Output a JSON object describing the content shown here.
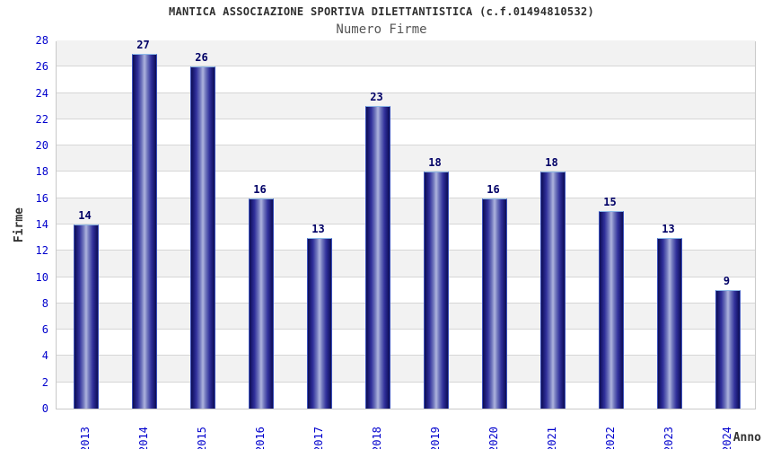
{
  "header": {
    "title": "MANTICA ASSOCIAZIONE SPORTIVA DILETTANTISTICA (c.f.01494810532)",
    "subtitle": "Numero Firme"
  },
  "chart_data": {
    "type": "bar",
    "title": "MANTICA ASSOCIAZIONE SPORTIVA DILETTANTISTICA (c.f.01494810532)",
    "subtitle": "Numero Firme",
    "categories": [
      "2013",
      "2014",
      "2015",
      "2016",
      "2017",
      "2018",
      "2019",
      "2020",
      "2021",
      "2022",
      "2023",
      "2024"
    ],
    "values": [
      14,
      27,
      26,
      16,
      13,
      23,
      18,
      16,
      18,
      15,
      13,
      9
    ],
    "xlabel": "Anno",
    "ylabel": "Firme",
    "ylim": [
      0,
      28
    ],
    "ytick_step": 2,
    "grid": true,
    "legend": false,
    "colors": {
      "bar_dark": "#0e0e52",
      "bar_mid": "#32329c",
      "bar_light": "#aeb4de",
      "bar_rim": "#8cb8e8",
      "axis_tick_label": "#0000cd",
      "value_label": "#000066",
      "title": "#2e2e2e",
      "subtitle": "#555555",
      "band_gray": "#f2f2f2",
      "band_white": "#ffffff",
      "gridline": "#d6d6d6",
      "plot_border": "#c9c9c9"
    }
  }
}
